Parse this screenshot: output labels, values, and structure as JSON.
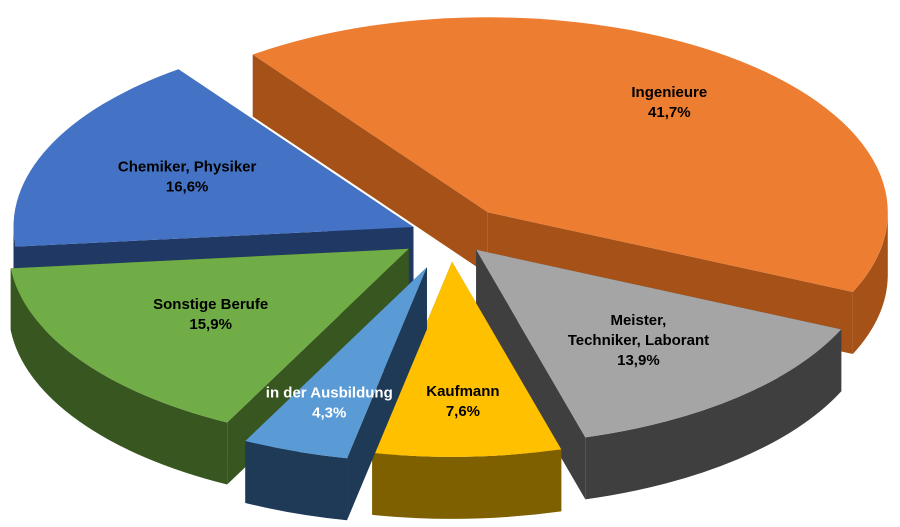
{
  "chart_data": {
    "type": "pie",
    "title": "",
    "three_d": true,
    "exploded": true,
    "legend": "none",
    "slices": [
      {
        "name": "Ingenieure",
        "value": 41.7,
        "value_label": "41,7%",
        "color": "#ED7D31",
        "side_color": "#A55117",
        "label_color": "#000000"
      },
      {
        "name": "Meister, Techniker, Laborant",
        "value": 13.9,
        "value_label": "13,9%",
        "color": "#A5A5A5",
        "side_color": "#3F3F3F",
        "label_color": "#000000"
      },
      {
        "name": "Kaufmann",
        "value": 7.6,
        "value_label": "7,6%",
        "color": "#FFC000",
        "side_color": "#7F6000",
        "label_color": "#000000"
      },
      {
        "name": "in der Ausbildung",
        "value": 4.3,
        "value_label": "4,3%",
        "color": "#5B9BD5",
        "side_color": "#1F3A56",
        "label_color": "#FFFFFF"
      },
      {
        "name": "Sonstige Berufe",
        "value": 15.9,
        "value_label": "15,9%",
        "color": "#70AD47",
        "side_color": "#38561F",
        "label_color": "#000000"
      },
      {
        "name": "Chemiker, Physiker",
        "value": 16.6,
        "value_label": "16,6%",
        "color": "#4472C4",
        "side_color": "#1F3864",
        "label_color": "#000000"
      }
    ]
  }
}
